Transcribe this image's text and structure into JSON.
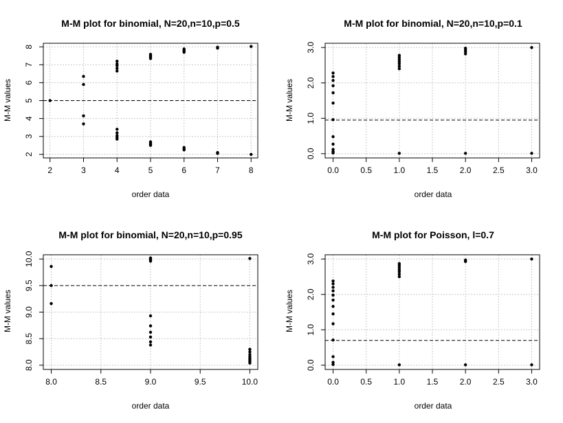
{
  "chart_data": [
    {
      "type": "scatter",
      "title": "M-M plot for binomial, N=20,n=10,p=0.5",
      "xlabel": "order data",
      "ylabel": "M-M values",
      "xlim": [
        1.8,
        8.2
      ],
      "ylim": [
        1.8,
        8.2
      ],
      "xticks": [
        2,
        3,
        4,
        5,
        6,
        7,
        8
      ],
      "xtick_labels": [
        "2",
        "3",
        "4",
        "5",
        "6",
        "7",
        "8"
      ],
      "yticks": [
        2,
        3,
        4,
        5,
        6,
        7,
        8
      ],
      "ytick_labels": [
        "2",
        "3",
        "4",
        "5",
        "6",
        "7",
        "8"
      ],
      "reference_line": 5,
      "grid": true,
      "points": [
        [
          2,
          5.0
        ],
        [
          3,
          3.7
        ],
        [
          3,
          4.15
        ],
        [
          3,
          5.9
        ],
        [
          3,
          6.35
        ],
        [
          4,
          2.85
        ],
        [
          4,
          2.95
        ],
        [
          4,
          3.05
        ],
        [
          4,
          3.2
        ],
        [
          4,
          3.4
        ],
        [
          4,
          6.65
        ],
        [
          4,
          6.8
        ],
        [
          4,
          6.95
        ],
        [
          4,
          7.05
        ],
        [
          4,
          7.2
        ],
        [
          5,
          2.5
        ],
        [
          5,
          2.56
        ],
        [
          5,
          2.62
        ],
        [
          5,
          2.7
        ],
        [
          5,
          7.35
        ],
        [
          5,
          7.42
        ],
        [
          5,
          7.5
        ],
        [
          5,
          7.58
        ],
        [
          6,
          2.25
        ],
        [
          6,
          2.3
        ],
        [
          6,
          2.38
        ],
        [
          6,
          7.7
        ],
        [
          6,
          7.76
        ],
        [
          6,
          7.82
        ],
        [
          6,
          7.88
        ],
        [
          7,
          2.05
        ],
        [
          7,
          2.1
        ],
        [
          7,
          7.93
        ],
        [
          7,
          7.98
        ],
        [
          8,
          2.0
        ],
        [
          8,
          8.02
        ]
      ]
    },
    {
      "type": "scatter",
      "title": "M-M plot for binomial, N=20,n=10,p=0.1",
      "xlabel": "order data",
      "ylabel": "M-M values",
      "xlim": [
        -0.12,
        3.12
      ],
      "ylim": [
        -0.12,
        3.12
      ],
      "xticks": [
        0,
        0.5,
        1,
        1.5,
        2,
        2.5,
        3
      ],
      "xtick_labels": [
        "0.0",
        "0.5",
        "1.0",
        "1.5",
        "2.0",
        "2.5",
        "3.0"
      ],
      "yticks": [
        0,
        1,
        2,
        3
      ],
      "ytick_labels": [
        "0.0",
        "1.0",
        "2.0",
        "3.0"
      ],
      "reference_line": 0.95,
      "grid": true,
      "points": [
        [
          0,
          0.02
        ],
        [
          0,
          0.06
        ],
        [
          0,
          0.12
        ],
        [
          0,
          0.27
        ],
        [
          0,
          0.48
        ],
        [
          0,
          0.96
        ],
        [
          0,
          1.43
        ],
        [
          0,
          1.72
        ],
        [
          0,
          1.92
        ],
        [
          0,
          2.07
        ],
        [
          0,
          2.18
        ],
        [
          0,
          2.28
        ],
        [
          1,
          0.01
        ],
        [
          1,
          2.4
        ],
        [
          1,
          2.47
        ],
        [
          1,
          2.54
        ],
        [
          1,
          2.6
        ],
        [
          1,
          2.66
        ],
        [
          1,
          2.72
        ],
        [
          1,
          2.78
        ],
        [
          2,
          0.01
        ],
        [
          2,
          2.82
        ],
        [
          2,
          2.88
        ],
        [
          2,
          2.93
        ],
        [
          2,
          2.98
        ],
        [
          3,
          0.01
        ],
        [
          3,
          3.0
        ]
      ]
    },
    {
      "type": "scatter",
      "title": "M-M plot for binomial, N=20,n=10,p=0.95",
      "xlabel": "order data",
      "ylabel": "M-M values",
      "xlim": [
        7.92,
        10.08
      ],
      "ylim": [
        7.92,
        10.08
      ],
      "xticks": [
        8,
        8.5,
        9,
        9.5,
        10
      ],
      "xtick_labels": [
        "8.0",
        "8.5",
        "9.0",
        "9.5",
        "10.0"
      ],
      "yticks": [
        8,
        8.5,
        9,
        9.5,
        10
      ],
      "ytick_labels": [
        "8.0",
        "8.5",
        "9.0",
        "9.5",
        "10.0"
      ],
      "reference_line": 9.5,
      "grid": true,
      "points": [
        [
          8,
          9.16
        ],
        [
          8,
          9.5
        ],
        [
          8,
          9.86
        ],
        [
          9,
          8.38
        ],
        [
          9,
          8.44
        ],
        [
          9,
          8.53
        ],
        [
          9,
          8.62
        ],
        [
          9,
          8.74
        ],
        [
          9,
          8.93
        ],
        [
          9,
          9.96
        ],
        [
          9,
          9.98
        ],
        [
          9,
          10.0
        ],
        [
          9,
          10.02
        ],
        [
          10,
          8.04
        ],
        [
          10,
          8.07
        ],
        [
          10,
          8.1
        ],
        [
          10,
          8.13
        ],
        [
          10,
          8.16
        ],
        [
          10,
          8.2
        ],
        [
          10,
          8.25
        ],
        [
          10,
          8.3
        ],
        [
          10,
          10.01
        ]
      ]
    },
    {
      "type": "scatter",
      "title": "M-M plot for Poisson, l=0.7",
      "xlabel": "order data",
      "ylabel": "M-M values",
      "xlim": [
        -0.12,
        3.12
      ],
      "ylim": [
        -0.12,
        3.12
      ],
      "xticks": [
        0,
        0.5,
        1,
        1.5,
        2,
        2.5,
        3
      ],
      "xtick_labels": [
        "0.0",
        "0.5",
        "1.0",
        "1.5",
        "2.0",
        "2.5",
        "3.0"
      ],
      "yticks": [
        0,
        1,
        2,
        3
      ],
      "ytick_labels": [
        "0.0",
        "1.0",
        "2.0",
        "3.0"
      ],
      "reference_line": 0.7,
      "grid": true,
      "points": [
        [
          0,
          0.02
        ],
        [
          0,
          0.08
        ],
        [
          0,
          0.24
        ],
        [
          0,
          0.71
        ],
        [
          0,
          1.17
        ],
        [
          0,
          1.45
        ],
        [
          0,
          1.66
        ],
        [
          0,
          1.84
        ],
        [
          0,
          1.98
        ],
        [
          0,
          2.1
        ],
        [
          0,
          2.2
        ],
        [
          0,
          2.3
        ],
        [
          0,
          2.38
        ],
        [
          1,
          0.01
        ],
        [
          1,
          2.5
        ],
        [
          1,
          2.57
        ],
        [
          1,
          2.64
        ],
        [
          1,
          2.7
        ],
        [
          1,
          2.76
        ],
        [
          1,
          2.82
        ],
        [
          1,
          2.87
        ],
        [
          2,
          0.01
        ],
        [
          2,
          2.93
        ],
        [
          2,
          2.97
        ],
        [
          3,
          0.01
        ],
        [
          3,
          3.0
        ]
      ]
    }
  ]
}
